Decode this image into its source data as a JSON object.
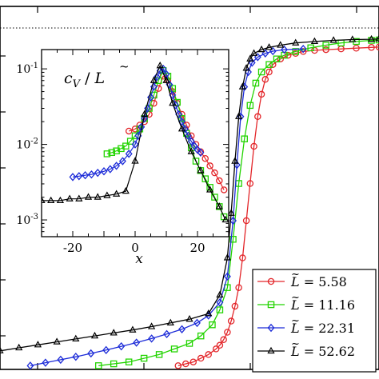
{
  "chart_data": [
    {
      "type": "line",
      "role": "main",
      "grid": false,
      "dotted_reference_line": true,
      "series": [
        {
          "name": "= 5.58",
          "color": "#e3262a",
          "marker": "circle",
          "x": [
            0.47,
            0.49,
            0.51,
            0.53,
            0.55,
            0.57,
            0.58,
            0.59,
            0.6,
            0.61,
            0.62,
            0.63,
            0.64,
            0.65,
            0.66,
            0.67,
            0.68,
            0.69,
            0.7,
            0.71,
            0.72,
            0.74,
            0.76,
            0.78,
            0.8,
            0.83,
            0.86,
            0.9,
            0.94,
            0.98,
            1.0
          ],
          "y": [
            0.01,
            0.015,
            0.02,
            0.03,
            0.04,
            0.055,
            0.065,
            0.08,
            0.1,
            0.13,
            0.17,
            0.22,
            0.3,
            0.4,
            0.5,
            0.6,
            0.68,
            0.74,
            0.78,
            0.8,
            0.82,
            0.835,
            0.845,
            0.85,
            0.855,
            0.858,
            0.86,
            0.862,
            0.864,
            0.866,
            0.867
          ]
        },
        {
          "name": "= 11.16",
          "color": "#22d400",
          "marker": "square",
          "x": [
            0.26,
            0.3,
            0.34,
            0.38,
            0.42,
            0.46,
            0.5,
            0.53,
            0.56,
            0.58,
            0.6,
            0.615,
            0.63,
            0.645,
            0.66,
            0.675,
            0.69,
            0.71,
            0.73,
            0.75,
            0.78,
            0.82,
            0.86,
            0.9,
            0.94,
            0.98,
            1.0
          ],
          "y": [
            0.01,
            0.015,
            0.02,
            0.03,
            0.04,
            0.055,
            0.07,
            0.09,
            0.12,
            0.16,
            0.22,
            0.35,
            0.5,
            0.62,
            0.71,
            0.77,
            0.8,
            0.82,
            0.835,
            0.845,
            0.855,
            0.865,
            0.872,
            0.878,
            0.882,
            0.885,
            0.886
          ]
        },
        {
          "name": "= 22.31",
          "color": "#1c2bd8",
          "marker": "diamond",
          "x": [
            0.08,
            0.12,
            0.16,
            0.2,
            0.24,
            0.28,
            0.32,
            0.36,
            0.4,
            0.44,
            0.48,
            0.52,
            0.55,
            0.58,
            0.6,
            0.615,
            0.625,
            0.635,
            0.645,
            0.655,
            0.665,
            0.68,
            0.7,
            0.72,
            0.75,
            0.8
          ],
          "y": [
            0.01,
            0.018,
            0.026,
            0.034,
            0.043,
            0.052,
            0.062,
            0.072,
            0.083,
            0.095,
            0.108,
            0.125,
            0.145,
            0.18,
            0.25,
            0.4,
            0.55,
            0.68,
            0.76,
            0.8,
            0.825,
            0.84,
            0.85,
            0.856,
            0.86,
            0.862
          ]
        },
        {
          "name": "= 52.62",
          "color": "#000000",
          "marker": "triangle",
          "x": [
            0.0,
            0.05,
            0.1,
            0.15,
            0.2,
            0.25,
            0.3,
            0.35,
            0.4,
            0.45,
            0.5,
            0.55,
            0.58,
            0.6,
            0.61,
            0.62,
            0.63,
            0.64,
            0.65,
            0.66,
            0.67,
            0.69,
            0.71,
            0.74,
            0.78,
            0.83,
            0.88,
            0.93,
            0.98,
            1.0
          ],
          "y": [
            0.05,
            0.058,
            0.066,
            0.074,
            0.082,
            0.09,
            0.098,
            0.106,
            0.115,
            0.125,
            0.135,
            0.15,
            0.2,
            0.3,
            0.42,
            0.56,
            0.68,
            0.76,
            0.81,
            0.835,
            0.85,
            0.86,
            0.866,
            0.872,
            0.878,
            0.882,
            0.885,
            0.887,
            0.888,
            0.889
          ]
        }
      ]
    },
    {
      "type": "line",
      "role": "inset",
      "ylabel_parts": [
        "c",
        "V",
        " / ",
        "L"
      ],
      "xlabel": "x",
      "xlim": [
        -30,
        30
      ],
      "ylim": [
        0.0006,
        0.18
      ],
      "yscale": "log",
      "xticks": [
        -20,
        0,
        20
      ],
      "yticks": [
        {
          "value": 0.1,
          "base": "10",
          "exp": "-1"
        },
        {
          "value": 0.01,
          "base": "10",
          "exp": "-2"
        },
        {
          "value": 0.001,
          "base": "10",
          "exp": "-3"
        }
      ],
      "series": [
        {
          "name": "= 5.58",
          "color": "#e3262a",
          "marker": "circle",
          "x": [
            -2,
            0,
            1.5,
            3,
            4.5,
            6,
            7.5,
            9,
            10.5,
            12,
            13.5,
            15,
            16.5,
            18,
            19.5,
            21,
            22.5,
            24,
            25.5,
            27,
            28.5
          ],
          "y": [
            0.015,
            0.016,
            0.018,
            0.02,
            0.025,
            0.035,
            0.055,
            0.08,
            0.07,
            0.05,
            0.035,
            0.025,
            0.018,
            0.013,
            0.01,
            0.008,
            0.0065,
            0.0052,
            0.0042,
            0.0033,
            0.0025
          ]
        },
        {
          "name": "= 11.16",
          "color": "#22d400",
          "marker": "square",
          "x": [
            -9,
            -7.5,
            -6,
            -4.5,
            -3,
            -1.5,
            0,
            1.5,
            3,
            4.5,
            6,
            7.5,
            9,
            10.5,
            12,
            13.5,
            15,
            16.5,
            18,
            19.5,
            21,
            22.5,
            24,
            25.5,
            27,
            28.5
          ],
          "y": [
            0.0075,
            0.0078,
            0.0082,
            0.0088,
            0.0095,
            0.011,
            0.013,
            0.016,
            0.022,
            0.03,
            0.045,
            0.07,
            0.095,
            0.08,
            0.055,
            0.036,
            0.022,
            0.014,
            0.009,
            0.006,
            0.0045,
            0.0035,
            0.0027,
            0.002,
            0.0015,
            0.0011
          ]
        },
        {
          "name": "= 22.31",
          "color": "#1c2bd8",
          "marker": "diamond",
          "x": [
            -20,
            -18,
            -16,
            -14,
            -12,
            -10,
            -8,
            -6,
            -4,
            -2,
            0,
            1,
            2,
            3,
            4,
            5,
            6,
            7,
            8,
            9,
            10,
            11,
            12,
            13,
            14,
            15,
            16,
            17,
            18,
            19,
            20,
            21
          ],
          "y": [
            0.0037,
            0.0038,
            0.0039,
            0.004,
            0.0042,
            0.0044,
            0.0047,
            0.0052,
            0.006,
            0.0075,
            0.01,
            0.013,
            0.017,
            0.022,
            0.03,
            0.042,
            0.058,
            0.078,
            0.095,
            0.1,
            0.085,
            0.062,
            0.045,
            0.033,
            0.025,
            0.02,
            0.016,
            0.013,
            0.011,
            0.0095,
            0.0085,
            0.0078
          ]
        },
        {
          "name": "= 52.62",
          "color": "#000000",
          "marker": "triangle",
          "x": [
            -30,
            -27,
            -24,
            -21,
            -18,
            -15,
            -12,
            -9,
            -6,
            -3,
            0,
            3,
            6,
            8,
            10,
            12,
            15,
            18,
            21,
            24,
            27,
            29
          ],
          "y": [
            0.0018,
            0.0018,
            0.0018,
            0.0019,
            0.0019,
            0.002,
            0.002,
            0.0021,
            0.0022,
            0.0024,
            0.006,
            0.025,
            0.07,
            0.11,
            0.07,
            0.035,
            0.016,
            0.008,
            0.0045,
            0.0025,
            0.0015,
            0.001
          ]
        }
      ]
    }
  ],
  "legend": {
    "symbol": "L",
    "entries": [
      "= 5.58",
      "= 11.16",
      "= 22.31",
      "= 52.62"
    ]
  }
}
